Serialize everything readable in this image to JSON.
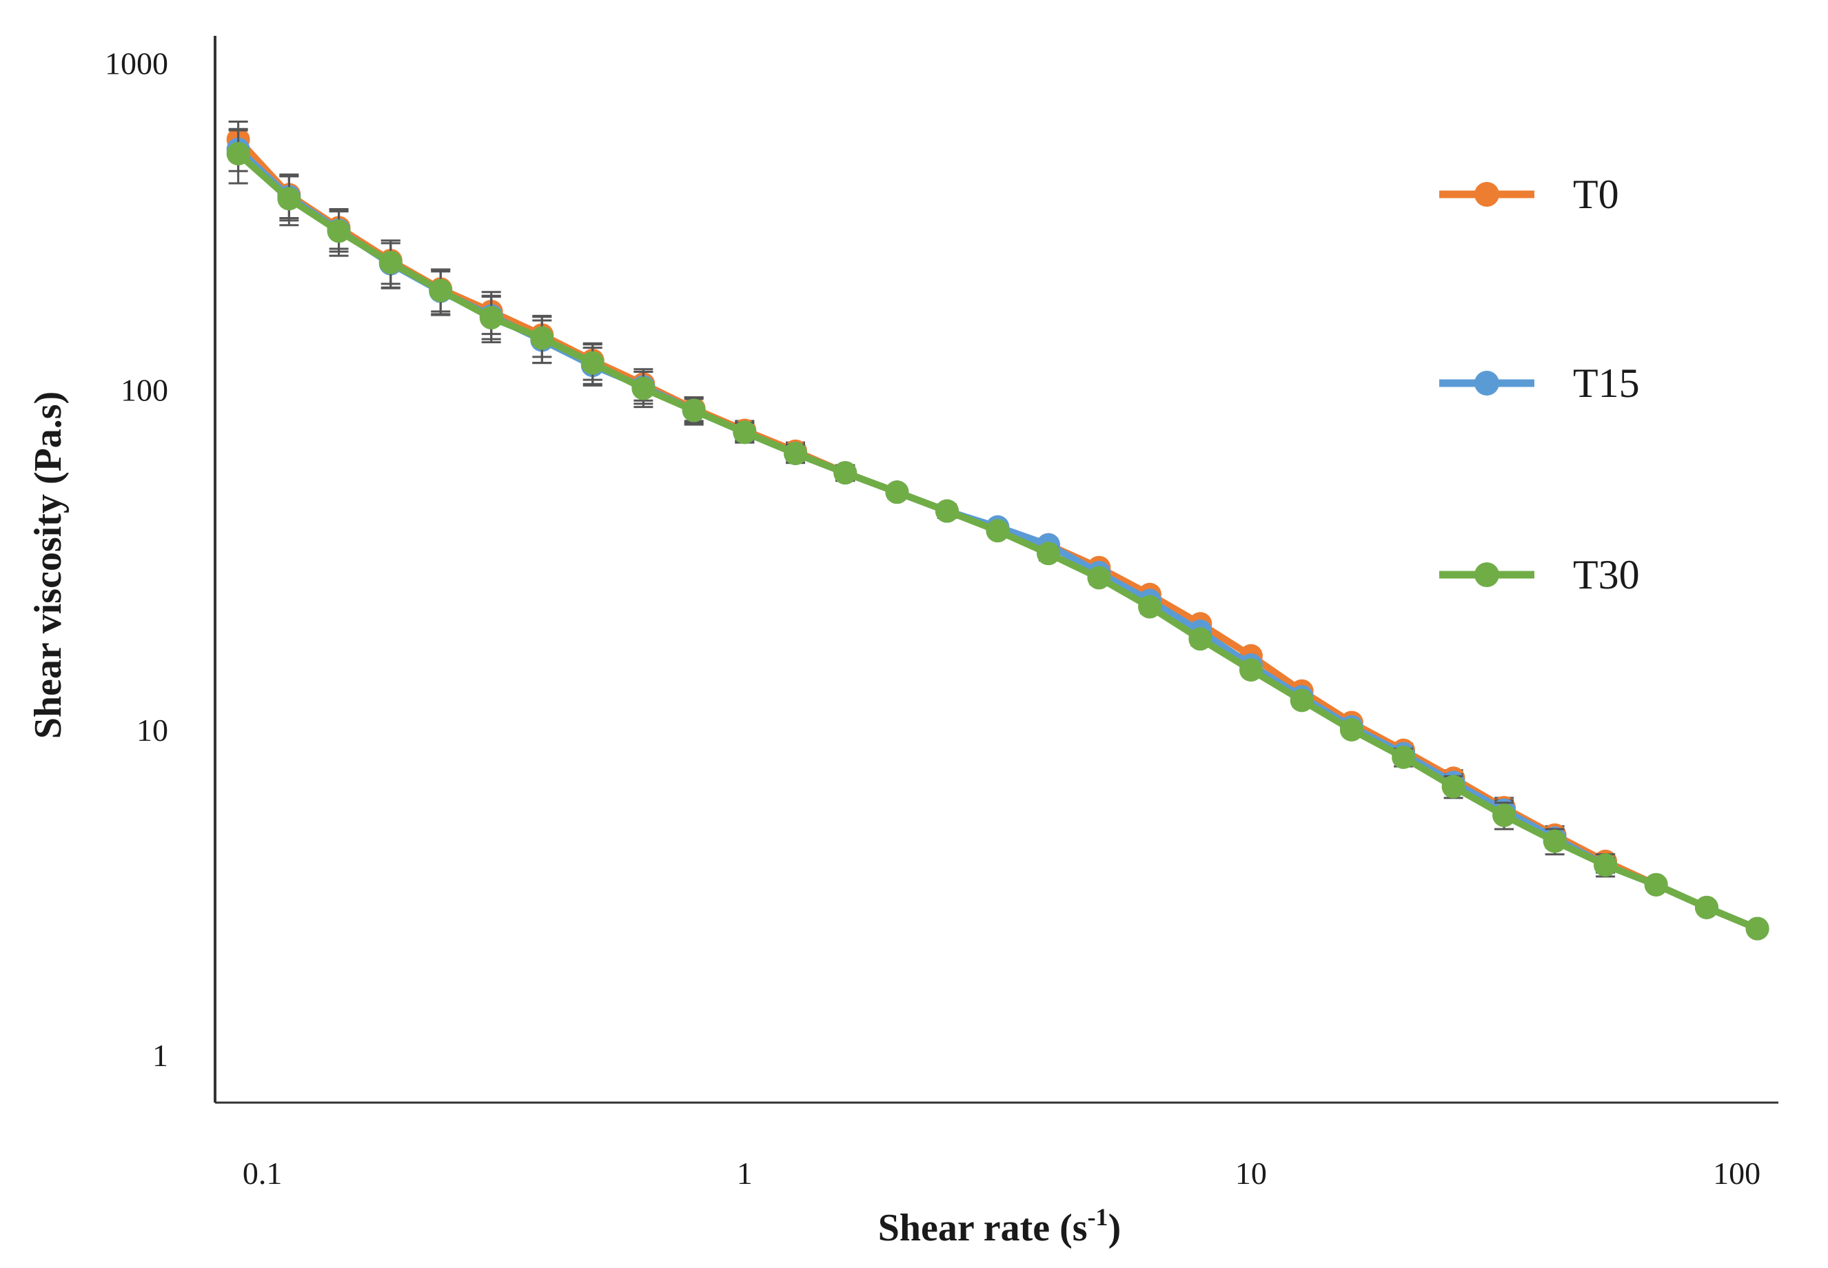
{
  "chart_data": {
    "type": "line",
    "xlabel": "Shear rate (s",
    "xlabel_sup": "-1",
    "xlabel_tail": ")",
    "ylabel": "Shear viscosity (Pa.s)",
    "x_scale": "log",
    "y_scale": "log",
    "xlim": [
      0.09,
      110
    ],
    "ylim": [
      0.8,
      1100
    ],
    "x_ticks": [
      0.1,
      1,
      10,
      100
    ],
    "x_tick_labels": [
      "0.1",
      "1",
      "10",
      "100"
    ],
    "y_ticks": [
      1,
      10,
      100,
      1000
    ],
    "y_tick_labels": [
      "1",
      "10",
      "100",
      "1000"
    ],
    "grid": false,
    "legend_position": "right",
    "x": [
      0.1,
      0.126,
      0.158,
      0.2,
      0.251,
      0.316,
      0.398,
      0.501,
      0.631,
      0.794,
      1.0,
      1.26,
      1.58,
      2.0,
      2.51,
      3.16,
      3.98,
      5.01,
      6.31,
      7.94,
      10.0,
      12.6,
      15.8,
      20.0,
      25.1,
      31.6,
      39.8,
      50.1,
      63.1,
      79.4,
      100.0
    ],
    "series": [
      {
        "name": "T0",
        "color": "#ED7D31",
        "values": [
          545,
          375,
          300,
          240,
          198,
          170,
          145,
          122,
          104,
          88,
          76,
          66,
          57,
          50,
          44,
          39,
          35,
          30,
          25,
          20.5,
          16.5,
          13,
          10.5,
          8.7,
          7.2,
          5.9,
          4.9,
          4.1,
          3.5,
          3.0,
          2.6
        ],
        "error": [
          70,
          55,
          40,
          35,
          28,
          24,
          20,
          15,
          11,
          7,
          5,
          4,
          3,
          2,
          2,
          1.5,
          1.5,
          1.2,
          1,
          0.8,
          0.6,
          0.5,
          0.4,
          0.4,
          0.4,
          0.4,
          0.3,
          0.2,
          0.1,
          0.1,
          0.1
        ]
      },
      {
        "name": "T15",
        "color": "#5B9BD5",
        "values": [
          510,
          370,
          295,
          235,
          195,
          165,
          140,
          118,
          102,
          87,
          75,
          65,
          57,
          50,
          44,
          39.5,
          35,
          29,
          24,
          19.5,
          15.5,
          12.5,
          10.2,
          8.5,
          7.0,
          5.8,
          4.8,
          4.0,
          3.5,
          3.0,
          2.6
        ],
        "error": [
          70,
          55,
          40,
          35,
          28,
          24,
          20,
          15,
          11,
          7,
          5,
          4,
          3,
          2,
          2,
          1.5,
          1.5,
          1.2,
          1,
          0.8,
          0.6,
          0.5,
          0.4,
          0.4,
          0.4,
          0.4,
          0.3,
          0.2,
          0.1,
          0.1,
          0.1
        ]
      },
      {
        "name": "T30",
        "color": "#70AD47",
        "values": [
          495,
          365,
          293,
          237,
          196,
          163,
          142,
          120,
          101,
          87,
          75,
          65,
          57,
          50,
          44,
          38.5,
          33,
          28,
          23,
          18.5,
          15,
          12.2,
          10,
          8.3,
          6.8,
          5.6,
          4.7,
          4.0,
          3.5,
          3.0,
          2.6
        ],
        "error": [
          90,
          60,
          45,
          38,
          30,
          25,
          22,
          16,
          12,
          8,
          5,
          4,
          3,
          2,
          2,
          1.5,
          1.5,
          1.2,
          1,
          0.8,
          0.6,
          0.5,
          0.4,
          0.5,
          0.5,
          0.5,
          0.4,
          0.3,
          0.1,
          0.1,
          0.1
        ]
      }
    ]
  }
}
